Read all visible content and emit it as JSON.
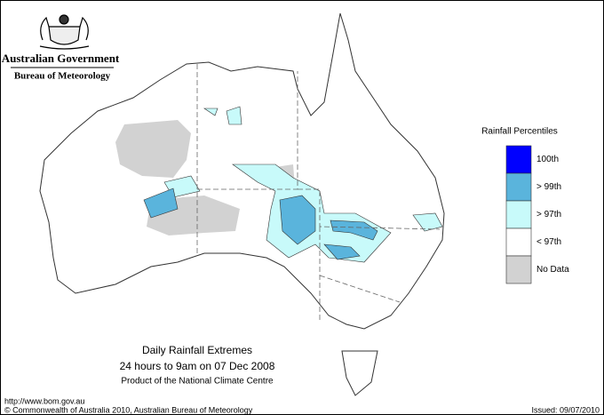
{
  "header": {
    "agency": "Australian Government",
    "bureau": "Bureau of Meteorology"
  },
  "legend": {
    "title": "Rainfall Percentiles",
    "items": [
      {
        "label": "100th",
        "color": "#0000ff"
      },
      {
        "label": "> 99th",
        "color": "#5ab4dc"
      },
      {
        "label": "> 97th",
        "color": "#c8fafa"
      },
      {
        "label": "< 97th",
        "color": "#ffffff"
      },
      {
        "label": "No Data",
        "color": "#d2d2d2"
      }
    ]
  },
  "caption": {
    "title": "Daily Rainfall Extremes",
    "subtitle": "24 hours to 9am on 07 Dec 2008",
    "credit": "Product of the National Climate Centre"
  },
  "footer": {
    "url": "http://www.bom.gov.au",
    "copyright": "© Commonwealth of Australia 2010, Australian Bureau of Meteorology",
    "issued": "Issued: 09/07/2010"
  }
}
